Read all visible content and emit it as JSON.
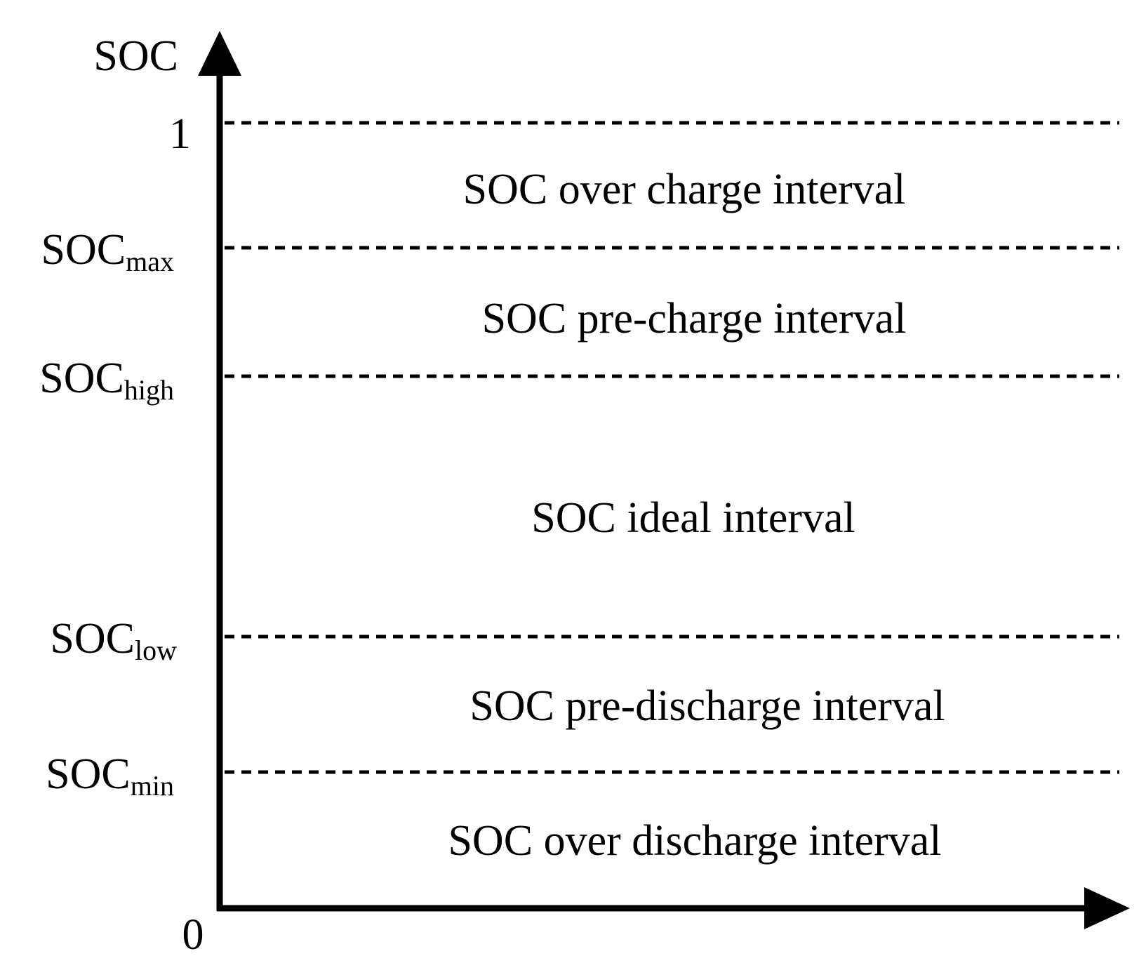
{
  "axis": {
    "y_title": "SOC",
    "top_value": "1",
    "origin": "0"
  },
  "levels": [
    {
      "id": "one",
      "base": "",
      "sub": ""
    },
    {
      "id": "max",
      "base": "SOC",
      "sub": "max"
    },
    {
      "id": "high",
      "base": "SOC",
      "sub": "high"
    },
    {
      "id": "low",
      "base": "SOC",
      "sub": "low"
    },
    {
      "id": "min",
      "base": "SOC",
      "sub": "min"
    }
  ],
  "regions": [
    {
      "id": "over-charge",
      "label": "SOC over charge interval"
    },
    {
      "id": "pre-charge",
      "label": "SOC pre-charge interval"
    },
    {
      "id": "ideal",
      "label": "SOC ideal interval"
    },
    {
      "id": "pre-discharge",
      "label": "SOC pre-discharge interval"
    },
    {
      "id": "over-discharge",
      "label": "SOC over discharge interval"
    }
  ],
  "colors": {
    "ink": "#000000",
    "background": "#ffffff"
  }
}
